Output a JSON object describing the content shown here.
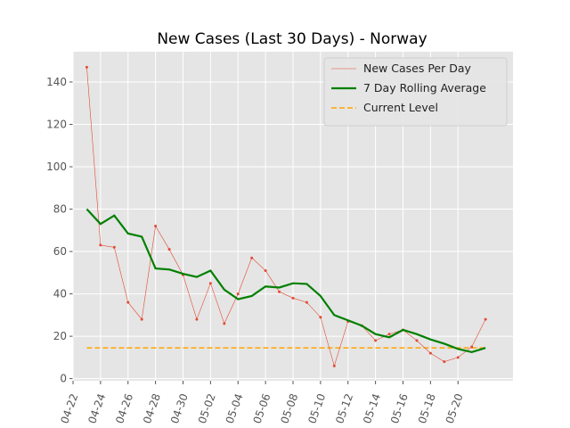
{
  "chart_data": {
    "type": "line",
    "title": "New Cases (Last 30 Days) - Norway",
    "x": [
      "04-23",
      "04-24",
      "04-25",
      "04-26",
      "04-27",
      "04-28",
      "04-29",
      "04-30",
      "05-01",
      "05-02",
      "05-03",
      "05-04",
      "05-05",
      "05-06",
      "05-07",
      "05-08",
      "05-09",
      "05-10",
      "05-11",
      "05-12",
      "05-13",
      "05-14",
      "05-15",
      "05-16",
      "05-17",
      "05-18",
      "05-19",
      "05-20",
      "05-21",
      "05-22"
    ],
    "series": [
      {
        "name": "New Cases Per Day",
        "color": "#e24a33",
        "width": 0.6,
        "markers": true,
        "values": [
          147,
          63,
          62,
          36,
          28,
          72,
          61,
          49,
          28,
          45,
          26,
          40,
          57,
          51,
          41,
          38,
          36,
          29,
          6,
          27,
          25,
          18,
          21,
          23,
          18,
          12,
          8,
          10,
          15,
          28
        ]
      },
      {
        "name": "7 Day Rolling Average",
        "color": "#008000",
        "width": 2.2,
        "markers": false,
        "values": [
          80,
          73,
          77,
          68.5,
          67,
          52,
          51.5,
          49.5,
          48,
          51,
          42,
          37.5,
          39,
          43.5,
          43,
          45,
          44.7,
          39,
          30,
          27.5,
          25,
          21,
          19.5,
          23,
          21,
          18.5,
          16.5,
          14,
          12.5,
          14.5
        ]
      }
    ],
    "reference": {
      "name": "Current Level",
      "color": "#ffa500",
      "value": 14.5
    },
    "xlim": [
      "04-22",
      "05-24"
    ],
    "xticks": [
      "04-22",
      "04-24",
      "04-26",
      "04-28",
      "04-30",
      "05-02",
      "05-04",
      "05-06",
      "05-08",
      "05-10",
      "05-12",
      "05-14",
      "05-16",
      "05-18",
      "05-20"
    ],
    "ylim": [
      -1,
      154.3
    ],
    "yticks": [
      0,
      20,
      40,
      60,
      80,
      100,
      120,
      140
    ],
    "grid": true,
    "legend": "upper right"
  }
}
